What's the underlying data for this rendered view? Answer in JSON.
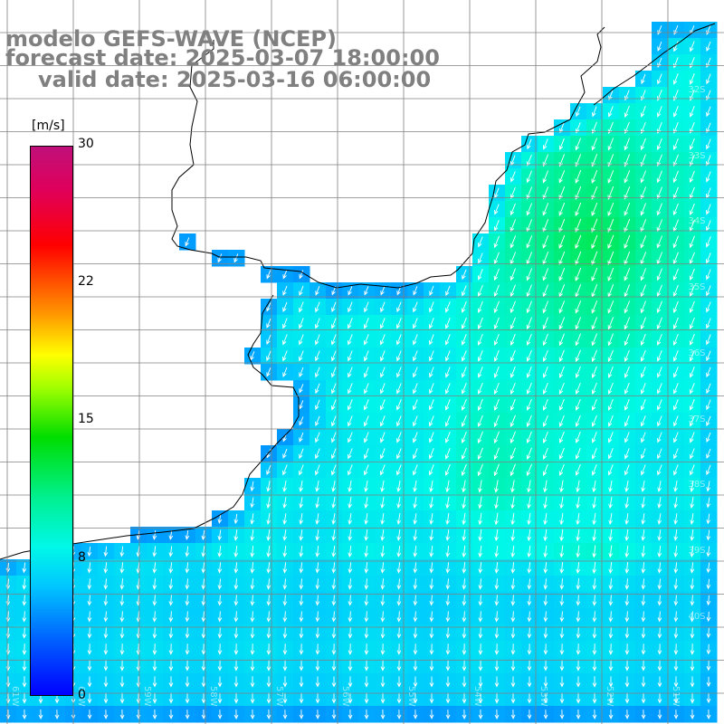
{
  "title": {
    "line1": "modelo GEFS-WAVE (NCEP)",
    "line2": "forecast date: 2025-03-07 18:00:00",
    "line3": "valid date: 2025-03-16 06:00:00"
  },
  "colorbar": {
    "unit": "[m/s]",
    "ticks": [
      "30",
      "22",
      "15",
      "8",
      "0"
    ],
    "range": [
      0,
      30
    ]
  },
  "map": {
    "lat_labels": [
      "32S",
      "33S",
      "34S",
      "35S",
      "36S",
      "37S",
      "38S",
      "39S",
      "40S"
    ],
    "lon_labels": [
      "61W",
      "60W",
      "59W",
      "58W",
      "57W",
      "56W",
      "55W",
      "54W",
      "53W",
      "52W",
      "51W"
    ],
    "colors": {
      "land": "#ffffff",
      "coast": "#000000",
      "grid": "#808080",
      "arrow": "#ffffff"
    }
  }
}
